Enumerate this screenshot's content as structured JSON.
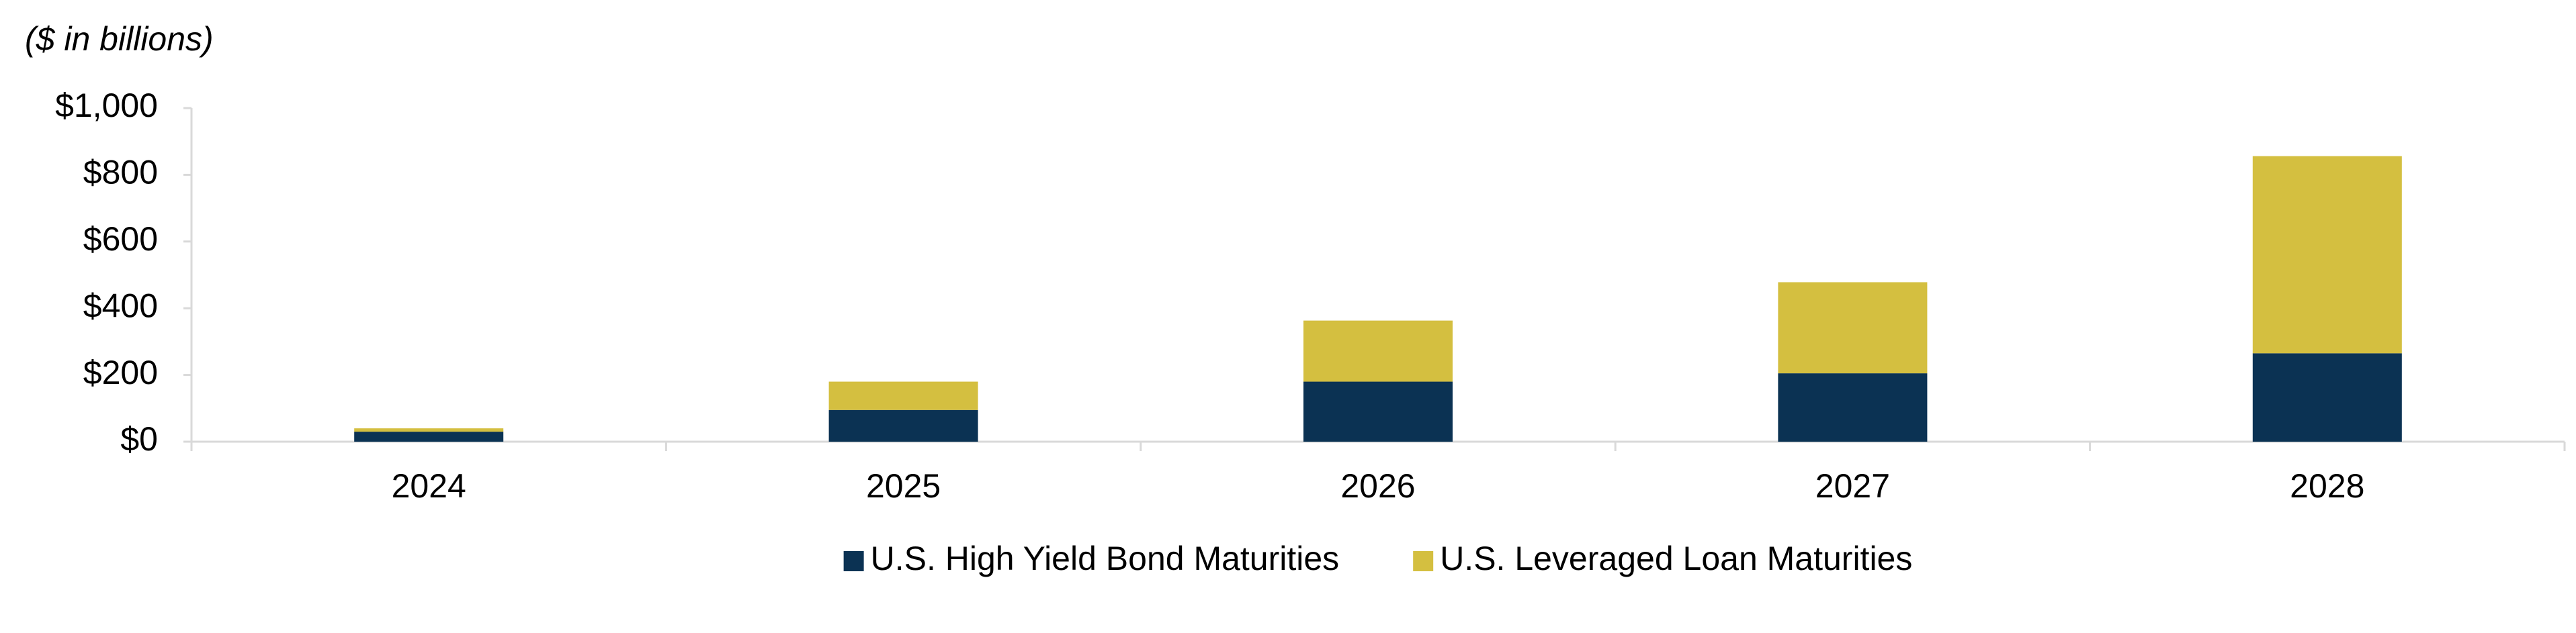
{
  "chart_data": {
    "type": "stacked_bar",
    "unit_label": "($ in billions)",
    "categories": [
      "2024",
      "2025",
      "2026",
      "2027",
      "2028"
    ],
    "series": [
      {
        "name": "U.S. High Yield Bond Maturities",
        "color": "#0b3253",
        "values": [
          30,
          95,
          180,
          205,
          265
        ]
      },
      {
        "name": "U.S. Leveraged Loan Maturities",
        "color": "#d4bf40",
        "values": [
          10,
          85,
          183,
          273,
          591
        ]
      }
    ],
    "ylim": [
      0,
      1000
    ],
    "yticks": [
      {
        "value": 0,
        "label": "$0"
      },
      {
        "value": 200,
        "label": "$200"
      },
      {
        "value": 400,
        "label": "$400"
      },
      {
        "value": 600,
        "label": "$600"
      },
      {
        "value": 800,
        "label": "$800"
      },
      {
        "value": 1000,
        "label": "$1,000"
      }
    ],
    "legend": "bottom"
  }
}
